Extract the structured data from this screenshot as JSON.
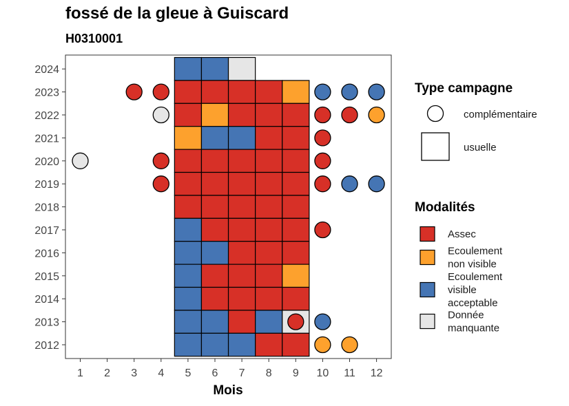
{
  "chart_data": {
    "type": "heatmap",
    "title": "fossé de la gleue à Guiscard",
    "subtitle": "H0310001",
    "xlabel": "Mois",
    "ylabel": "",
    "x_ticks": [
      "1",
      "2",
      "3",
      "4",
      "5",
      "6",
      "7",
      "8",
      "9",
      "10",
      "11",
      "12"
    ],
    "y_ticks": [
      "2012",
      "2013",
      "2014",
      "2015",
      "2016",
      "2017",
      "2018",
      "2019",
      "2020",
      "2021",
      "2022",
      "2023",
      "2024"
    ],
    "grid": false,
    "legend_position": "right",
    "legend_type": {
      "title": "Type campagne",
      "items": [
        {
          "shape": "circle",
          "label": "complémentaire"
        },
        {
          "shape": "square",
          "label": "usuelle"
        }
      ]
    },
    "legend_modalites": {
      "title": "Modalités",
      "items": [
        {
          "key": "A",
          "lines": [
            "Assec"
          ],
          "color": "#D73027"
        },
        {
          "key": "N",
          "lines": [
            "Ecoulement",
            "non visible"
          ],
          "color": "#FDA12D"
        },
        {
          "key": "V",
          "lines": [
            "Ecoulement",
            "visible",
            "acceptable"
          ],
          "color": "#4575B4"
        },
        {
          "key": "M",
          "lines": [
            "Donnée",
            "manquante"
          ],
          "color": "#E6E6E6"
        }
      ]
    },
    "usuelle_cells": [
      {
        "year": 2024,
        "months": [
          "V",
          "V",
          "M"
        ],
        "start_month": 5
      },
      {
        "year": 2023,
        "months": [
          "A",
          "A",
          "A",
          "A",
          "N"
        ],
        "start_month": 5
      },
      {
        "year": 2022,
        "months": [
          "A",
          "N",
          "A",
          "A",
          "A"
        ],
        "start_month": 5
      },
      {
        "year": 2021,
        "months": [
          "N",
          "V",
          "V",
          "A",
          "A"
        ],
        "start_month": 5
      },
      {
        "year": 2020,
        "months": [
          "A",
          "A",
          "A",
          "A",
          "A"
        ],
        "start_month": 5
      },
      {
        "year": 2019,
        "months": [
          "A",
          "A",
          "A",
          "A",
          "A"
        ],
        "start_month": 5
      },
      {
        "year": 2018,
        "months": [
          "A",
          "A",
          "A",
          "A",
          "A"
        ],
        "start_month": 5
      },
      {
        "year": 2017,
        "months": [
          "V",
          "A",
          "A",
          "A",
          "A"
        ],
        "start_month": 5
      },
      {
        "year": 2016,
        "months": [
          "V",
          "V",
          "A",
          "A",
          "A"
        ],
        "start_month": 5
      },
      {
        "year": 2015,
        "months": [
          "V",
          "A",
          "A",
          "A",
          "N"
        ],
        "start_month": 5
      },
      {
        "year": 2014,
        "months": [
          "V",
          "A",
          "A",
          "A",
          "A"
        ],
        "start_month": 5
      },
      {
        "year": 2013,
        "months": [
          "V",
          "V",
          "A",
          "V",
          "M"
        ],
        "start_month": 5
      },
      {
        "year": 2012,
        "months": [
          "V",
          "V",
          "V",
          "A",
          "A"
        ],
        "start_month": 5
      }
    ],
    "complementaire_points": [
      {
        "year": 2023,
        "month": 3,
        "mod": "A"
      },
      {
        "year": 2023,
        "month": 4,
        "mod": "A"
      },
      {
        "year": 2023,
        "month": 10,
        "mod": "V"
      },
      {
        "year": 2023,
        "month": 11,
        "mod": "V"
      },
      {
        "year": 2023,
        "month": 12,
        "mod": "V"
      },
      {
        "year": 2022,
        "month": 4,
        "mod": "M"
      },
      {
        "year": 2022,
        "month": 10,
        "mod": "A"
      },
      {
        "year": 2022,
        "month": 11,
        "mod": "A"
      },
      {
        "year": 2022,
        "month": 12,
        "mod": "N"
      },
      {
        "year": 2021,
        "month": 10,
        "mod": "A"
      },
      {
        "year": 2020,
        "month": 1,
        "mod": "M"
      },
      {
        "year": 2020,
        "month": 4,
        "mod": "A"
      },
      {
        "year": 2020,
        "month": 10,
        "mod": "A"
      },
      {
        "year": 2019,
        "month": 4,
        "mod": "A"
      },
      {
        "year": 2019,
        "month": 10,
        "mod": "A"
      },
      {
        "year": 2019,
        "month": 11,
        "mod": "V"
      },
      {
        "year": 2019,
        "month": 12,
        "mod": "V"
      },
      {
        "year": 2017,
        "month": 10,
        "mod": "A"
      },
      {
        "year": 2013,
        "month": 9,
        "mod": "A"
      },
      {
        "year": 2013,
        "month": 10,
        "mod": "V"
      },
      {
        "year": 2012,
        "month": 10,
        "mod": "N"
      },
      {
        "year": 2012,
        "month": 11,
        "mod": "N"
      }
    ]
  }
}
